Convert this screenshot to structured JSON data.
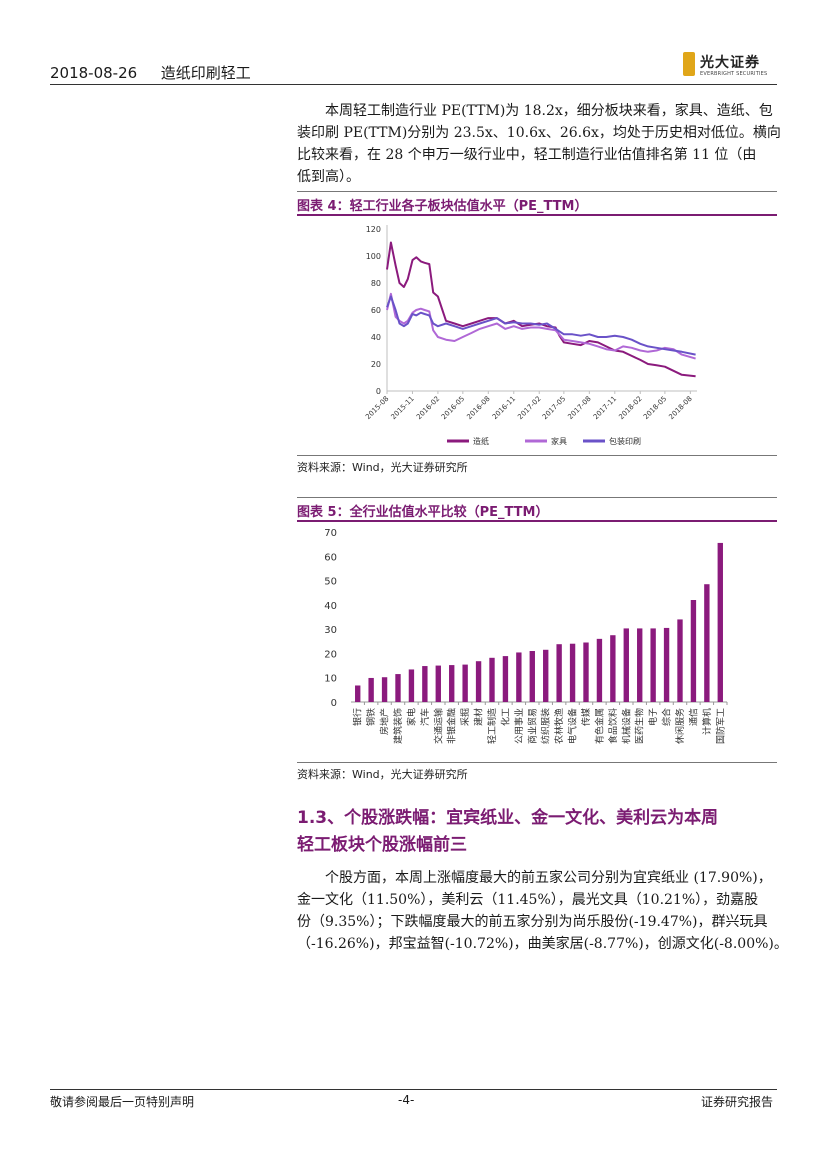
{
  "header": {
    "date": "2018-08-26",
    "title": "造纸印刷轻工",
    "logo_cn": "光大证券",
    "logo_en": "EVERBRIGHT SECURITIES"
  },
  "intro_lines": [
    "本周轻工制造行业 PE(TTM)为 18.2x，细分板块来看，家具、造纸、包",
    "装印刷 PE(TTM)分别为 23.5x、10.6x、26.6x，均处于历史相对低位。横向",
    "比较来看，在 28 个申万一级行业中，轻工制造行业估值排名第 11 位（由",
    "低到高）。"
  ],
  "figure4": {
    "title": "图表 4：轻工行业各子板块估值水平（PE_TTM）",
    "source": "资料来源：Wind，光大证券研究所"
  },
  "figure5": {
    "title": "图表 5：全行业估值水平比较（PE_TTM）",
    "source": "资料来源：Wind，光大证券研究所"
  },
  "chart_data": [
    {
      "type": "line",
      "title": "",
      "xlabel": "",
      "ylabel": "",
      "ylim": [
        0,
        120
      ],
      "yticks": [
        0,
        20,
        40,
        60,
        80,
        100,
        120
      ],
      "xticks": [
        "2015-08",
        "2015-11",
        "2016-02",
        "2016-05",
        "2016-08",
        "2016-11",
        "2017-02",
        "2017-05",
        "2017-08",
        "2017-11",
        "2018-02",
        "2018-05",
        "2018-08"
      ],
      "legend_position": "bottom",
      "grid": false,
      "colors": [
        "#8b1a7d",
        "#b068d6",
        "#6a52c8"
      ],
      "series": [
        {
          "name": "造纸",
          "x": [
            "2015-08-01",
            "2015-08-15",
            "2015-09-01",
            "2015-09-15",
            "2015-10-01",
            "2015-10-15",
            "2015-11-01",
            "2015-11-15",
            "2015-12-01",
            "2015-12-15",
            "2016-01-01",
            "2016-01-15",
            "2016-02-01",
            "2016-03-01",
            "2016-04-01",
            "2016-05-01",
            "2016-06-01",
            "2016-07-01",
            "2016-08-01",
            "2016-09-01",
            "2016-10-01",
            "2016-11-01",
            "2016-12-01",
            "2017-01-01",
            "2017-02-01",
            "2017-03-01",
            "2017-04-01",
            "2017-04-15",
            "2017-05-01",
            "2017-06-01",
            "2017-07-01",
            "2017-08-01",
            "2017-09-01",
            "2017-10-01",
            "2017-11-01",
            "2017-12-01",
            "2018-01-01",
            "2018-02-01",
            "2018-03-01",
            "2018-04-01",
            "2018-05-01",
            "2018-06-01",
            "2018-07-01",
            "2018-08-20"
          ],
          "values": [
            90,
            110,
            93,
            80,
            77,
            83,
            97,
            99,
            96,
            95,
            94,
            73,
            70,
            52,
            50,
            48,
            50,
            52,
            54,
            54,
            50,
            52,
            48,
            49,
            50,
            48,
            47,
            41,
            36,
            35,
            34,
            37,
            36,
            33,
            30,
            29,
            26,
            23,
            20,
            19,
            18,
            15,
            12,
            11
          ]
        },
        {
          "name": "家具",
          "x": [
            "2015-08-01",
            "2015-08-15",
            "2015-09-01",
            "2015-09-15",
            "2015-10-01",
            "2015-10-15",
            "2015-11-01",
            "2015-11-15",
            "2015-12-01",
            "2015-12-15",
            "2016-01-01",
            "2016-01-15",
            "2016-02-01",
            "2016-03-01",
            "2016-04-01",
            "2016-05-01",
            "2016-06-01",
            "2016-07-01",
            "2016-08-01",
            "2016-09-01",
            "2016-10-01",
            "2016-11-01",
            "2016-12-01",
            "2017-01-01",
            "2017-02-01",
            "2017-03-01",
            "2017-04-01",
            "2017-05-01",
            "2017-06-01",
            "2017-07-01",
            "2017-08-01",
            "2017-09-01",
            "2017-10-01",
            "2017-11-01",
            "2017-12-01",
            "2018-01-01",
            "2018-02-01",
            "2018-03-01",
            "2018-04-01",
            "2018-05-01",
            "2018-06-01",
            "2018-07-01",
            "2018-08-20"
          ],
          "values": [
            60,
            72,
            55,
            52,
            50,
            52,
            58,
            60,
            61,
            60,
            59,
            45,
            40,
            38,
            37,
            40,
            43,
            46,
            48,
            50,
            46,
            48,
            46,
            47,
            47,
            46,
            45,
            38,
            37,
            36,
            35,
            33,
            31,
            30,
            33,
            32,
            30,
            29,
            30,
            32,
            31,
            27,
            24
          ]
        },
        {
          "name": "包装印刷",
          "x": [
            "2015-08-01",
            "2015-08-15",
            "2015-09-01",
            "2015-09-15",
            "2015-10-01",
            "2015-10-15",
            "2015-11-01",
            "2015-11-15",
            "2015-12-01",
            "2015-12-15",
            "2016-01-01",
            "2016-01-15",
            "2016-02-01",
            "2016-03-01",
            "2016-04-01",
            "2016-05-01",
            "2016-06-01",
            "2016-07-01",
            "2016-08-01",
            "2016-09-01",
            "2016-10-01",
            "2016-11-01",
            "2016-12-01",
            "2017-01-01",
            "2017-02-01",
            "2017-03-01",
            "2017-04-01",
            "2017-05-01",
            "2017-06-01",
            "2017-07-01",
            "2017-08-01",
            "2017-09-01",
            "2017-10-01",
            "2017-11-01",
            "2017-12-01",
            "2018-01-01",
            "2018-02-01",
            "2018-03-01",
            "2018-04-01",
            "2018-05-01",
            "2018-06-01",
            "2018-07-01",
            "2018-08-20"
          ],
          "values": [
            62,
            70,
            60,
            50,
            48,
            50,
            57,
            56,
            58,
            57,
            56,
            50,
            48,
            50,
            48,
            46,
            48,
            50,
            52,
            54,
            50,
            51,
            50,
            50,
            49,
            50,
            46,
            42,
            42,
            41,
            42,
            40,
            40,
            41,
            40,
            38,
            35,
            33,
            32,
            31,
            30,
            29,
            27
          ]
        }
      ]
    },
    {
      "type": "bar",
      "title": "",
      "xlabel": "",
      "ylabel": "",
      "ylim": [
        0,
        70
      ],
      "yticks": [
        0,
        10,
        20,
        30,
        40,
        50,
        60,
        70
      ],
      "grid": false,
      "bar_color": "#8b1a7d",
      "categories": [
        "银行",
        "钢铁",
        "房地产",
        "建筑装饰",
        "家电",
        "汽车",
        "交通运输",
        "非银金融",
        "采掘",
        "建材",
        "轻工制造",
        "化工",
        "公用事业",
        "商业贸易",
        "纺织服装",
        "农林牧渔",
        "电气设备",
        "传媒",
        "有色金属",
        "食品饮料",
        "机械设备",
        "医药生物",
        "电子",
        "综合",
        "休闲服务",
        "通信",
        "计算机",
        "国防军工"
      ],
      "values": [
        6.8,
        9.9,
        10.2,
        11.5,
        13.4,
        14.8,
        15.0,
        15.2,
        15.4,
        16.8,
        18.2,
        18.9,
        20.4,
        21.0,
        21.5,
        23.8,
        24.0,
        24.5,
        26.0,
        27.5,
        30.3,
        30.3,
        30.3,
        30.5,
        34.0,
        42.0,
        48.5,
        65.5
      ]
    }
  ],
  "section": {
    "heading_line1": "1.3、个股涨跌幅：宜宾纸业、金一文化、美利云为本周",
    "heading_line2": "轻工板块个股涨幅前三"
  },
  "body_lines": [
    "个股方面，本周上涨幅度最大的前五家公司分别为宜宾纸业 (17.90%)，",
    "金一文化（11.50%），美利云（11.45%），晨光文具（10.21%），劲嘉股",
    "份（9.35%）；下跌幅度最大的前五家分别为尚乐股份(-19.47%)，群兴玩具",
    "（-16.26%)，邦宝益智(-10.72%)，曲美家居(-8.77%)，创源文化(-8.00%)。"
  ],
  "footer": {
    "left": "敬请参阅最后一页特别声明",
    "center": "-4-",
    "right": "证券研究报告"
  }
}
